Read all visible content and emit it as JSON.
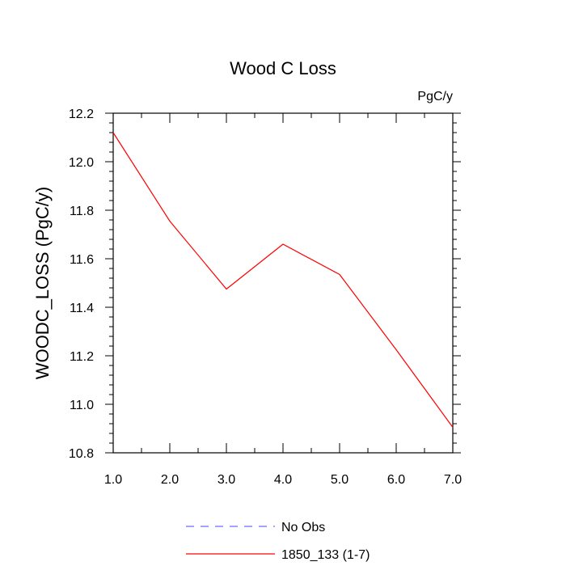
{
  "chart_data": {
    "type": "line",
    "title": "Wood C Loss",
    "units_label": "PgC/y",
    "ylabel": "WOODC_LOSS  (PgC/y)",
    "xlabel": "",
    "xlim": [
      1.0,
      7.0
    ],
    "ylim": [
      10.8,
      12.2
    ],
    "x_ticks": [
      "1.0",
      "2.0",
      "3.0",
      "4.0",
      "5.0",
      "6.0",
      "7.0"
    ],
    "y_ticks": [
      "10.8",
      "11.0",
      "11.2",
      "11.4",
      "11.6",
      "11.8",
      "12.0",
      "12.2"
    ],
    "grid": false,
    "legend_position": "bottom-center",
    "x": [
      1,
      2,
      3,
      4,
      5,
      6,
      7
    ],
    "series": [
      {
        "name": "1850_133 (1-7)",
        "color": "#ff0000",
        "style": "solid",
        "values": [
          12.12,
          11.755,
          11.475,
          11.66,
          11.535,
          11.225,
          10.905
        ]
      }
    ],
    "legend": [
      {
        "label": "No Obs",
        "color": "#6b6bff",
        "style": "dashed"
      },
      {
        "label": "1850_133 (1-7)",
        "color": "#ff0000",
        "style": "solid"
      }
    ]
  }
}
